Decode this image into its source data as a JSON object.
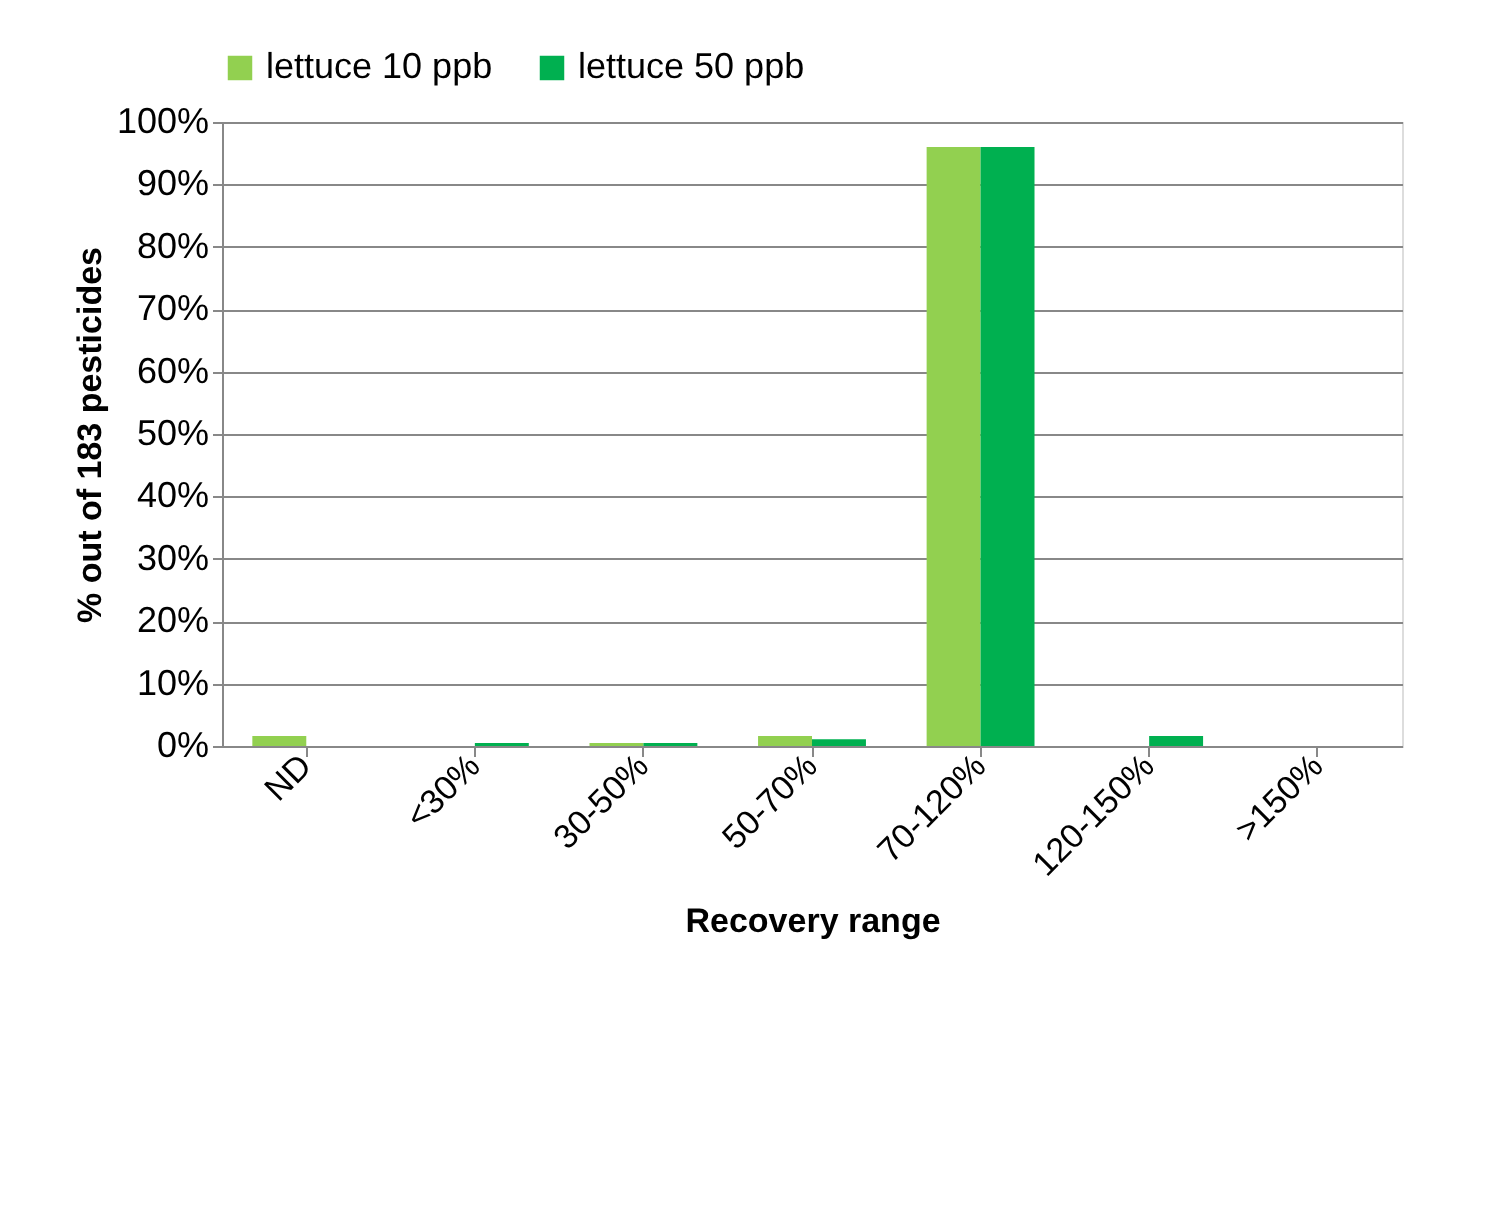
{
  "chart_data": {
    "type": "bar",
    "categories": [
      "ND",
      "<30%",
      "30-50%",
      "50-70%",
      "70-120%",
      "120-150%",
      ">150%"
    ],
    "series": [
      {
        "name": "lettuce 10 ppb",
        "color": "#92d050",
        "values": [
          1.6,
          0,
          0.5,
          1.6,
          96,
          0,
          0
        ]
      },
      {
        "name": "lettuce 50 ppb",
        "color": "#00b050",
        "values": [
          0,
          0.5,
          0.5,
          1.1,
          96,
          1.6,
          0
        ]
      }
    ],
    "xlabel": "Recovery range",
    "ylabel": "% out of 183 pesticides",
    "ylim": [
      0,
      100
    ],
    "yticks": [
      {
        "value": 0,
        "label": "0%"
      },
      {
        "value": 10,
        "label": "10%"
      },
      {
        "value": 20,
        "label": "20%"
      },
      {
        "value": 30,
        "label": "30%"
      },
      {
        "value": 40,
        "label": "40%"
      },
      {
        "value": 50,
        "label": "50%"
      },
      {
        "value": 60,
        "label": "60%"
      },
      {
        "value": 70,
        "label": "70%"
      },
      {
        "value": 80,
        "label": "80%"
      },
      {
        "value": 90,
        "label": "90%"
      },
      {
        "value": 100,
        "label": "100%"
      }
    ],
    "grid": "y",
    "legend": "top"
  }
}
